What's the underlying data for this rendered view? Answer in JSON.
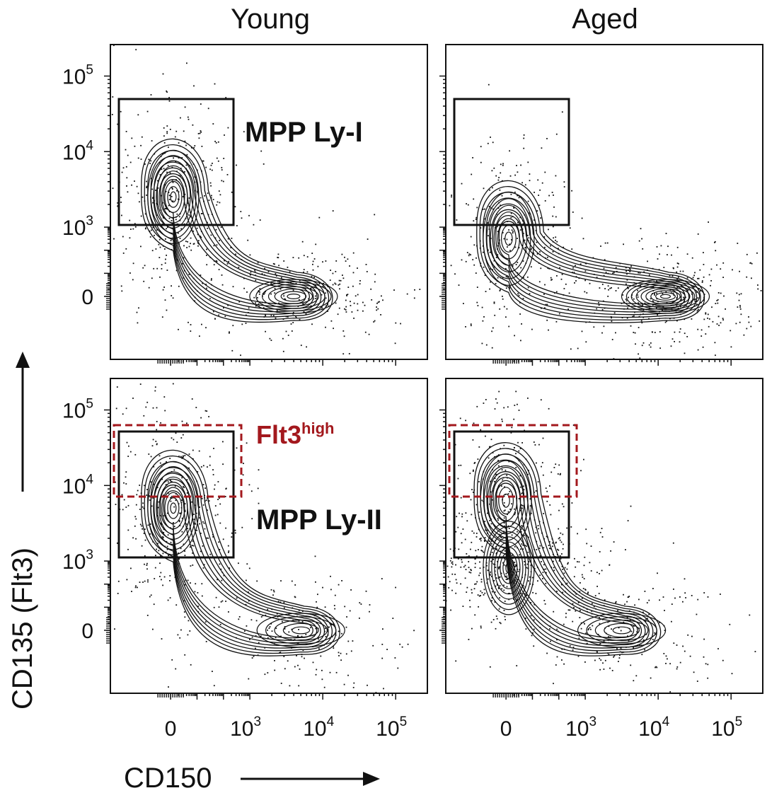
{
  "colors": {
    "ink": "#111111",
    "flt3_gate": "#a3181d"
  },
  "chart_data": {
    "type": "contour",
    "columns": [
      "Young",
      "Aged"
    ],
    "xlabel": "CD150",
    "ylabel": "CD135 (Flt3)",
    "x_ticks": [
      {
        "base": "0",
        "exp": ""
      },
      {
        "base": "10",
        "exp": "3"
      },
      {
        "base": "10",
        "exp": "4"
      },
      {
        "base": "10",
        "exp": "5"
      }
    ],
    "y_ticks": [
      {
        "base": "0",
        "exp": ""
      },
      {
        "base": "10",
        "exp": "3"
      },
      {
        "base": "10",
        "exp": "4"
      },
      {
        "base": "10",
        "exp": "5"
      }
    ],
    "scale": "biexponential",
    "labels": {
      "mpp_ly_i": "MPP Ly-I",
      "mpp_ly_ii": "MPP Ly-II",
      "flt3_high_base": "Flt3",
      "flt3_high_sup": "high"
    },
    "panels": [
      {
        "column": "Young",
        "gate": {
          "name": "MPP Ly-I",
          "x_range": [
            "<0",
            "~700"
          ],
          "y_range": [
            "~1.1e3",
            "~4.5e4"
          ]
        },
        "populations": [
          {
            "x_log": 0.1,
            "y_log": 3.4,
            "density": "high"
          },
          {
            "x_log": 3.6,
            "y_log": 0.0,
            "density": "medium"
          }
        ]
      },
      {
        "column": "Aged",
        "gate": {
          "name": "MPP Ly-I",
          "x_range": [
            "<0",
            "~700"
          ],
          "y_range": [
            "~1.1e3",
            "~4.5e4"
          ]
        },
        "populations": [
          {
            "x_log": 0.1,
            "y_log": 2.5,
            "density": "medium"
          },
          {
            "x_log": 4.1,
            "y_log": 0.0,
            "density": "high"
          }
        ]
      },
      {
        "column": "Young",
        "gate": {
          "name": "MPP Ly-II",
          "x_range": [
            "<0",
            "~700"
          ],
          "y_range": [
            "~1.1e3",
            "~4.5e4"
          ]
        },
        "highlight_gate": {
          "name": "Flt3 high",
          "y_range": [
            "~6e3",
            "~6e4"
          ]
        },
        "populations": [
          {
            "x_log": 0.1,
            "y_log": 3.7,
            "density": "high"
          },
          {
            "x_log": 3.7,
            "y_log": 0.0,
            "density": "low"
          }
        ]
      },
      {
        "column": "Aged",
        "gate": {
          "name": "MPP Ly-II",
          "x_range": [
            "<0",
            "~700"
          ],
          "y_range": [
            "~1.1e3",
            "~4.5e4"
          ]
        },
        "highlight_gate": {
          "name": "Flt3 high",
          "y_range": [
            "~6e3",
            "~6e4"
          ]
        },
        "populations": [
          {
            "x_log": 0.0,
            "y_log": 3.8,
            "density": "medium"
          },
          {
            "x_log": 0.1,
            "y_log": 2.7,
            "density": "high"
          },
          {
            "x_log": 3.5,
            "y_log": 0.0,
            "density": "low"
          }
        ]
      }
    ]
  }
}
